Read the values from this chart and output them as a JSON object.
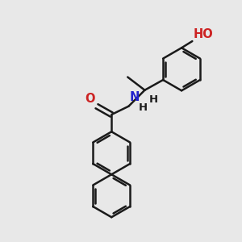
{
  "background_color": "#e8e8e8",
  "bond_color": "#1a1a1a",
  "bond_width": 1.8,
  "N_color": "#2222cc",
  "O_color": "#cc2222",
  "text_fontsize": 10.5,
  "figsize": [
    3.0,
    3.0
  ],
  "dpi": 100,
  "xlim": [
    0,
    10
  ],
  "ylim": [
    0,
    10
  ]
}
